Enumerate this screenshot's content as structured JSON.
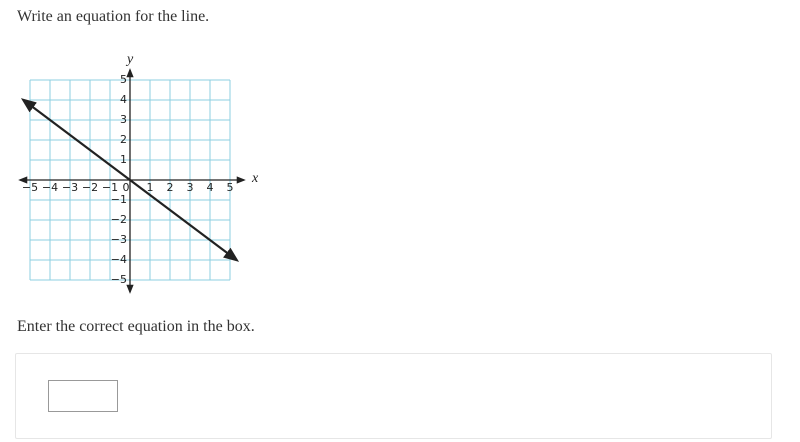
{
  "prompt": "Write an equation for the line.",
  "graph": {
    "x_label": "x",
    "y_label": "y",
    "xlim": [
      -5,
      5
    ],
    "ylim": [
      -5,
      5
    ],
    "xticks": [
      {
        "value": -5,
        "label": "−5"
      },
      {
        "value": -4,
        "label": "−4"
      },
      {
        "value": -3,
        "label": "−3"
      },
      {
        "value": -2,
        "label": "−2"
      },
      {
        "value": -1,
        "label": "−1"
      },
      0,
      1,
      2,
      3,
      4,
      5
    ],
    "yticks": [
      {
        "value": -5,
        "label": "−5"
      },
      {
        "value": -4,
        "label": "−4"
      },
      {
        "value": -3,
        "label": "−3"
      },
      {
        "value": -2,
        "label": "−2"
      },
      {
        "value": -1,
        "label": "−1"
      },
      1,
      2,
      3,
      4,
      5
    ],
    "line": {
      "x": [
        -5.33,
        5.33
      ],
      "y": [
        4,
        -4
      ]
    }
  },
  "instruction": "Enter the correct equation in the box."
}
